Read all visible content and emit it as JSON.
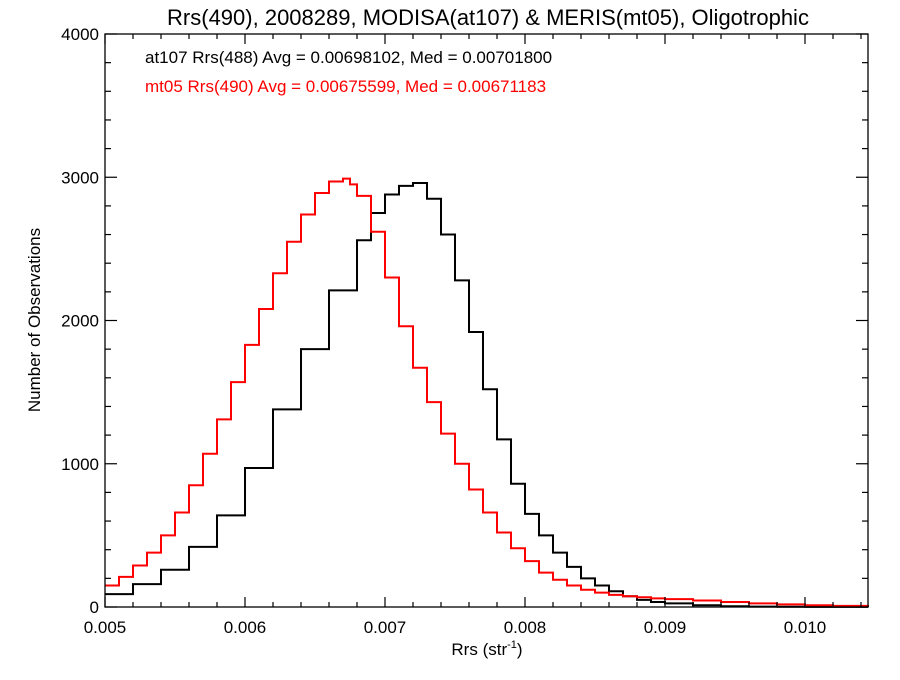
{
  "chart_data": {
    "type": "line",
    "title": "Rrs(490), 2008289, MODISA(at107) & MERIS(mt05), Oligotrophic",
    "xlabel_main": "Rrs (str",
    "xlabel_sup": "-1",
    "xlabel_close": ")",
    "ylabel": "Number of Observations",
    "xlim": [
      0.005,
      0.01045
    ],
    "ylim": [
      0,
      4000
    ],
    "x_ticks": [
      0.005,
      0.006,
      0.007,
      0.008,
      0.009,
      0.01
    ],
    "x_tick_labels": [
      "0.005",
      "0.006",
      "0.007",
      "0.008",
      "0.009",
      "0.010"
    ],
    "y_ticks": [
      0,
      1000,
      2000,
      3000,
      4000
    ],
    "y_tick_labels": [
      "0",
      "1000",
      "2000",
      "3000",
      "4000"
    ],
    "grid": false,
    "annotations": [
      {
        "text": "at107 Rrs(488) Avg = 0.00698102, Med = 0.00701800",
        "color": "#000000"
      },
      {
        "text": "mt05 Rrs(490) Avg = 0.00675599, Med = 0.00671183",
        "color": "#ff0000"
      }
    ],
    "series": [
      {
        "color": "#000000",
        "points": [
          [
            0.005,
            90
          ],
          [
            0.0052,
            160
          ],
          [
            0.0054,
            260
          ],
          [
            0.0056,
            420
          ],
          [
            0.0058,
            640
          ],
          [
            0.006,
            970
          ],
          [
            0.0062,
            1380
          ],
          [
            0.0064,
            1800
          ],
          [
            0.0066,
            2210
          ],
          [
            0.0068,
            2560
          ],
          [
            0.0069,
            2750
          ],
          [
            0.007,
            2880
          ],
          [
            0.0071,
            2940
          ],
          [
            0.0072,
            2960
          ],
          [
            0.0073,
            2850
          ],
          [
            0.0074,
            2600
          ],
          [
            0.0075,
            2280
          ],
          [
            0.0076,
            1920
          ],
          [
            0.0077,
            1520
          ],
          [
            0.0078,
            1170
          ],
          [
            0.0079,
            860
          ],
          [
            0.008,
            650
          ],
          [
            0.0081,
            500
          ],
          [
            0.0082,
            380
          ],
          [
            0.0083,
            280
          ],
          [
            0.0084,
            200
          ],
          [
            0.0085,
            150
          ],
          [
            0.0086,
            110
          ],
          [
            0.0087,
            75
          ],
          [
            0.0088,
            50
          ],
          [
            0.0089,
            35
          ],
          [
            0.009,
            25
          ],
          [
            0.0092,
            12
          ],
          [
            0.0094,
            5
          ],
          [
            0.0096,
            3
          ],
          [
            0.0098,
            2
          ],
          [
            0.01,
            1
          ],
          [
            0.01045,
            0
          ]
        ]
      },
      {
        "color": "#ff0000",
        "points": [
          [
            0.005,
            150
          ],
          [
            0.0051,
            210
          ],
          [
            0.0052,
            290
          ],
          [
            0.0053,
            380
          ],
          [
            0.0054,
            500
          ],
          [
            0.0055,
            660
          ],
          [
            0.0056,
            850
          ],
          [
            0.0057,
            1070
          ],
          [
            0.0058,
            1310
          ],
          [
            0.0059,
            1570
          ],
          [
            0.006,
            1830
          ],
          [
            0.0061,
            2080
          ],
          [
            0.0062,
            2330
          ],
          [
            0.0063,
            2550
          ],
          [
            0.0064,
            2740
          ],
          [
            0.0065,
            2890
          ],
          [
            0.0066,
            2970
          ],
          [
            0.0067,
            2990
          ],
          [
            0.00675,
            2950
          ],
          [
            0.0068,
            2870
          ],
          [
            0.0069,
            2620
          ],
          [
            0.007,
            2300
          ],
          [
            0.0071,
            1960
          ],
          [
            0.0072,
            1670
          ],
          [
            0.0073,
            1430
          ],
          [
            0.0074,
            1210
          ],
          [
            0.0075,
            1000
          ],
          [
            0.0076,
            820
          ],
          [
            0.0077,
            660
          ],
          [
            0.0078,
            520
          ],
          [
            0.0079,
            410
          ],
          [
            0.008,
            320
          ],
          [
            0.0081,
            240
          ],
          [
            0.0082,
            190
          ],
          [
            0.0083,
            150
          ],
          [
            0.0084,
            120
          ],
          [
            0.0085,
            100
          ],
          [
            0.0086,
            85
          ],
          [
            0.0087,
            75
          ],
          [
            0.0088,
            68
          ],
          [
            0.0089,
            60
          ],
          [
            0.009,
            55
          ],
          [
            0.0092,
            45
          ],
          [
            0.0094,
            35
          ],
          [
            0.0096,
            25
          ],
          [
            0.0098,
            18
          ],
          [
            0.01,
            12
          ],
          [
            0.0102,
            8
          ],
          [
            0.01045,
            5
          ]
        ]
      }
    ]
  }
}
